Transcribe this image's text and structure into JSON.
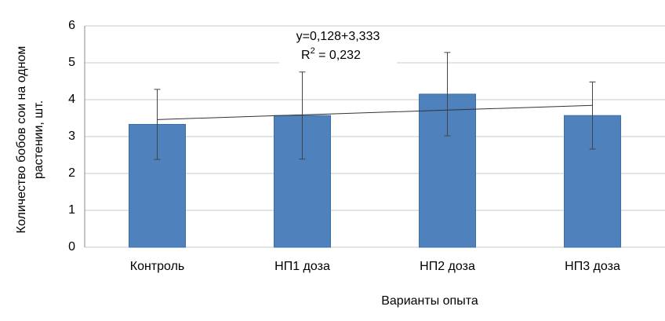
{
  "chart_data": {
    "type": "bar",
    "categories": [
      "Контроль",
      "НП1 доза",
      "НП2 доза",
      "НП3 доза"
    ],
    "values": [
      3.33,
      3.57,
      4.15,
      3.57
    ],
    "errors": [
      0.95,
      1.18,
      1.13,
      0.91
    ],
    "color": "#4f81bd",
    "trendline": {
      "values": [
        3.461,
        3.589,
        3.717,
        3.845
      ],
      "color": "#333333",
      "equation": "y=0,128+3,333",
      "r2": {
        "prefix": "R",
        "sup": "2",
        "rest": " = 0,232"
      }
    },
    "ylim": [
      0,
      6
    ],
    "yticks": [
      0,
      1,
      2,
      3,
      4,
      5,
      6
    ],
    "grid": true,
    "y_label": [
      "Количество бобов сои на одном",
      "растении, шт."
    ],
    "x_label": "Варианты опыта"
  }
}
